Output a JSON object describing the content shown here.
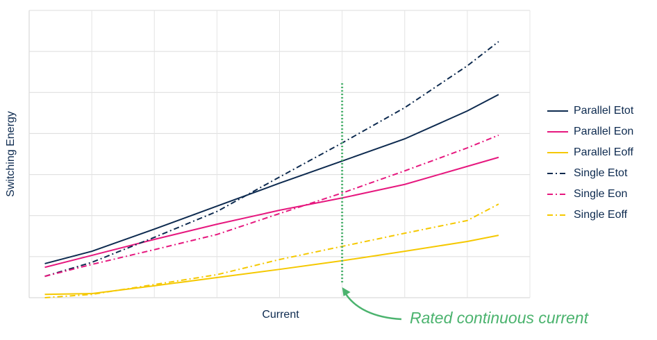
{
  "chart_data": {
    "type": "line",
    "xlabel": "Current",
    "ylabel": "Switching Energy",
    "x": [
      0.25,
      1,
      2,
      3,
      4,
      5,
      6,
      7,
      7.5
    ],
    "xlim": [
      0,
      8
    ],
    "ylim": [
      0,
      7
    ],
    "xticks": [
      1,
      2,
      3,
      4,
      5,
      6,
      7,
      8
    ],
    "yticks": [
      1,
      2,
      3,
      4,
      5,
      6,
      7
    ],
    "grid": true,
    "legend": "right",
    "series": [
      {
        "name": "Parallel Etot",
        "color": "#0d2a4f",
        "dash": "solid",
        "values": [
          0.83,
          1.13,
          1.67,
          2.23,
          2.79,
          3.33,
          3.87,
          4.55,
          4.95
        ]
      },
      {
        "name": "Parallel Eon",
        "color": "#e6177e",
        "dash": "solid",
        "values": [
          0.74,
          1.03,
          1.42,
          1.79,
          2.13,
          2.43,
          2.76,
          3.2,
          3.42
        ]
      },
      {
        "name": "Parallel Eoff",
        "color": "#f5c800",
        "dash": "solid",
        "values": [
          0.08,
          0.1,
          0.29,
          0.49,
          0.69,
          0.9,
          1.13,
          1.37,
          1.52
        ]
      },
      {
        "name": "Single Etot",
        "color": "#0d2a4f",
        "dash": "dashdot",
        "values": [
          0.52,
          0.86,
          1.47,
          2.1,
          2.94,
          3.77,
          4.63,
          5.65,
          6.24
        ]
      },
      {
        "name": "Single Eon",
        "color": "#e6177e",
        "dash": "dashdot",
        "values": [
          0.52,
          0.81,
          1.17,
          1.54,
          2.05,
          2.55,
          3.09,
          3.65,
          3.96
        ]
      },
      {
        "name": "Single Eoff",
        "color": "#f5c800",
        "dash": "dashdot",
        "values": [
          0,
          0.08,
          0.32,
          0.56,
          0.93,
          1.25,
          1.57,
          1.88,
          2.28
        ]
      }
    ],
    "annotation": {
      "text": "Rated continuous current",
      "x": 5,
      "color": "#4bb36e"
    }
  }
}
